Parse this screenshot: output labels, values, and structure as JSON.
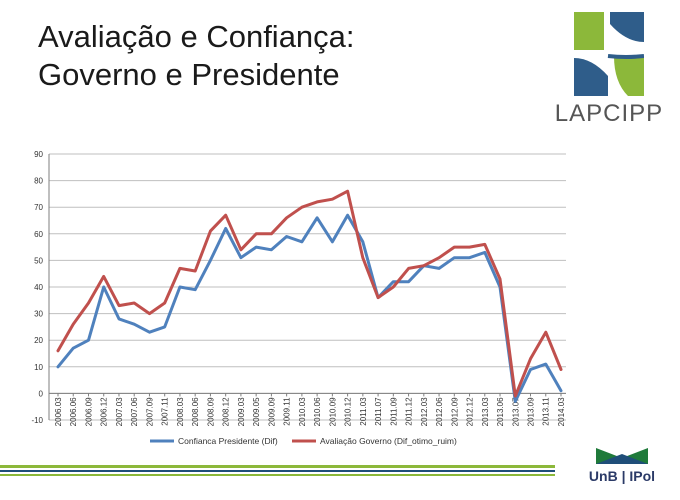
{
  "slide": {
    "title_line1": "Avaliação e Confiança:",
    "title_line2": "Governo e Presidente",
    "logo_text": "LAPCIPP",
    "footer_logo_text": "UnB | IPol"
  },
  "colors": {
    "presidente": "#4f81bd",
    "governo": "#c0504d",
    "logo_green": "#8cb83a",
    "logo_blue": "#2f5d8a",
    "footer_green": "#8cb83a",
    "footer_blue": "#1f4e79"
  },
  "icons": [
    "lapcipp-logo-icon",
    "unb-logo-icon"
  ],
  "chart_data": {
    "type": "line",
    "title": "",
    "xlabel": "",
    "ylabel": "",
    "ylim": [
      -10,
      90
    ],
    "yticks": [
      -10,
      0,
      10,
      20,
      30,
      40,
      50,
      60,
      70,
      80,
      90
    ],
    "grid": "horizontal",
    "legend": "bottom",
    "x": [
      "2006.03",
      "2006.06",
      "2006.09",
      "2006.12",
      "2007.03",
      "2007.06",
      "2007.09",
      "2007.11",
      "2008.03",
      "2008.06",
      "2008.09",
      "2008.12",
      "2009.03",
      "2009.05",
      "2009.09",
      "2009.11",
      "2010.03",
      "2010.06",
      "2010.09",
      "2010.12",
      "2011.03",
      "2011.07",
      "2011.09",
      "2011.12",
      "2012.03",
      "2012.06",
      "2012.09",
      "2012.12",
      "2013.03",
      "2013.06",
      "2013.07",
      "2013.09",
      "2013.11",
      "2014.03"
    ],
    "series": [
      {
        "name": "Confianca Presidente (Dif)",
        "values": [
          10,
          17,
          20,
          40,
          28,
          26,
          23,
          25,
          40,
          39,
          50,
          62,
          51,
          55,
          54,
          59,
          57,
          66,
          57,
          67,
          57,
          36,
          42,
          42,
          48,
          47,
          51,
          51,
          53,
          40,
          -3,
          9,
          11,
          1
        ]
      },
      {
        "name": "Avaliação Governo (Dif_otimo_ruim)",
        "values": [
          16,
          26,
          34,
          44,
          33,
          34,
          30,
          34,
          47,
          46,
          61,
          67,
          54,
          60,
          60,
          66,
          70,
          72,
          73,
          76,
          51,
          36,
          40,
          47,
          48,
          51,
          55,
          55,
          56,
          43,
          -1,
          13,
          23,
          9
        ]
      }
    ]
  }
}
